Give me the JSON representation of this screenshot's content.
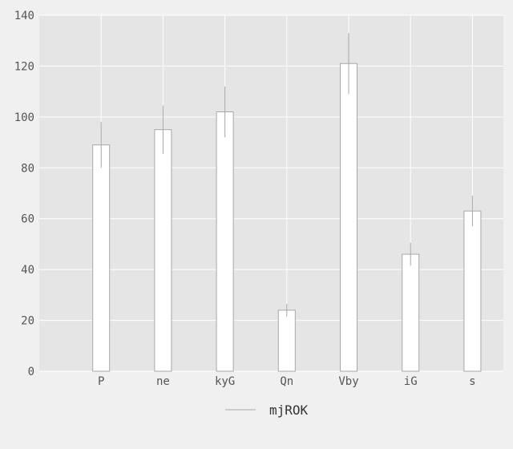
{
  "chart_data": {
    "type": "bar",
    "categories": [
      "P",
      "ne",
      "kyG",
      "Qn",
      "Vby",
      "iG",
      "s"
    ],
    "series": [
      {
        "name": "mjROK",
        "values": [
          89,
          95,
          102,
          24,
          121,
          46,
          63
        ],
        "error": [
          9,
          9.5,
          10,
          2.5,
          12,
          4.5,
          6
        ]
      }
    ],
    "title": "",
    "xlabel": "",
    "ylabel": "",
    "ylim": [
      0,
      140
    ],
    "yticks": [
      0,
      20,
      40,
      60,
      80,
      100,
      120,
      140
    ],
    "grid": true,
    "legend_position": "bottom-center",
    "colors": {
      "plot_background": "#e5e5e5",
      "figure_background": "#f0f0f0",
      "grid": "#ffffff",
      "bar_fill": "#ffffff",
      "bar_edge": "#a8a8a8",
      "error_bar": "#a8a8a8"
    }
  }
}
